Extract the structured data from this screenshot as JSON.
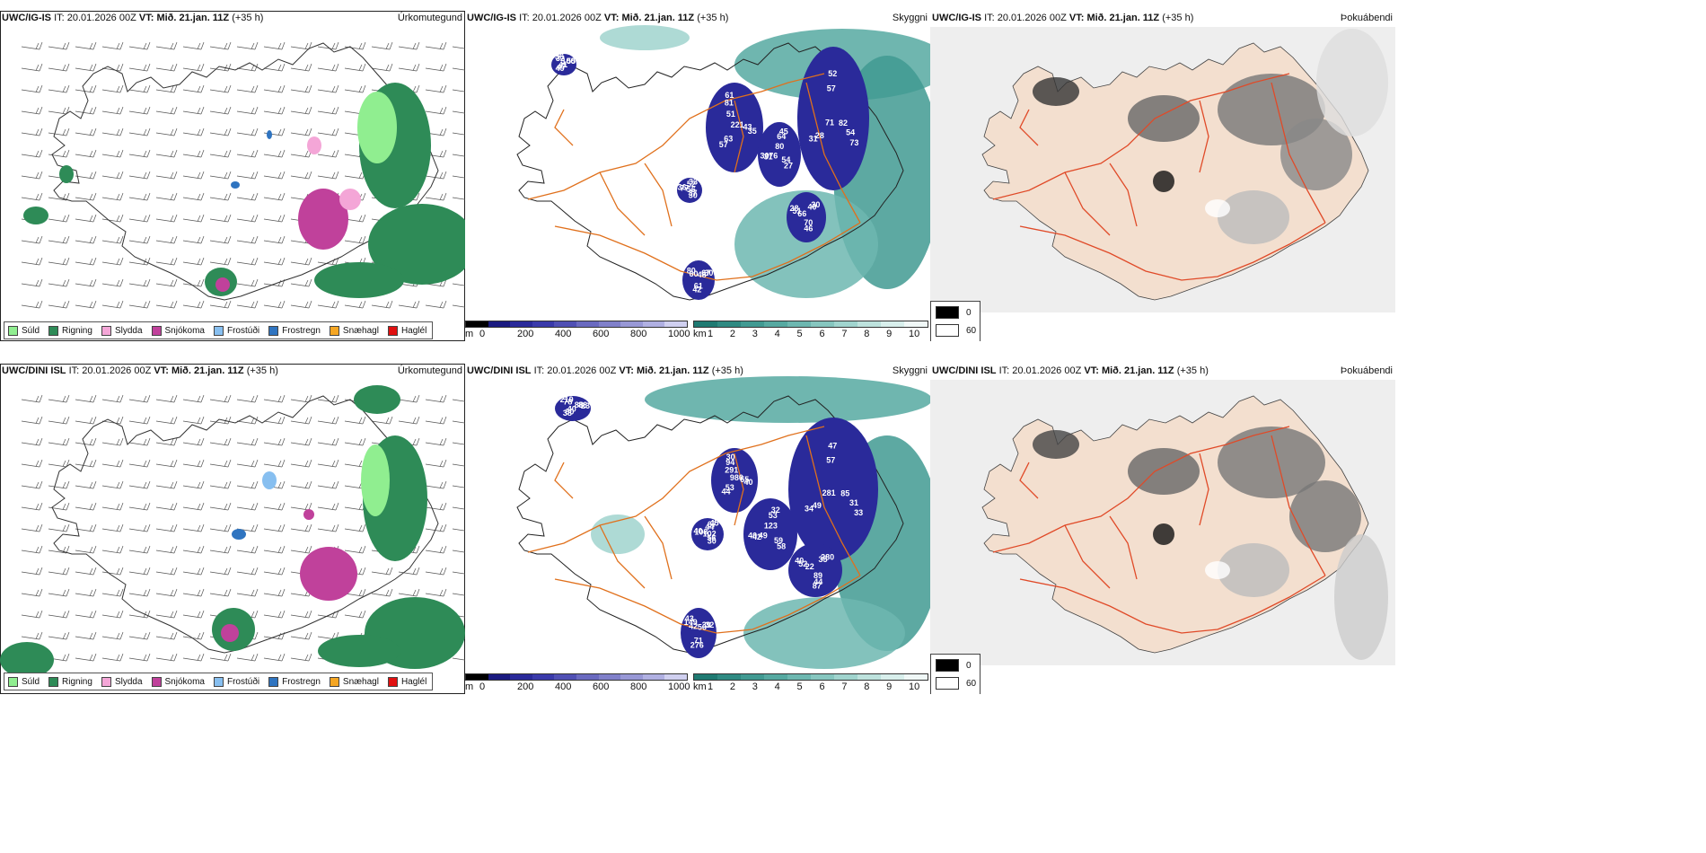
{
  "rows": [
    {
      "model": "UWC/IG-IS",
      "it_label": "IT:",
      "it_value": "20.01.2026 00Z",
      "vt_label": "VT:",
      "vt_value": "Mið. 21.jan. 11Z",
      "lead": "(+35 h)",
      "vis_labels": [
        "221",
        "71",
        "80",
        "56",
        "66",
        "48",
        "41",
        "51",
        "82",
        "76",
        "52",
        "70",
        "60",
        "100",
        "63",
        "57",
        "54",
        "77",
        "40",
        "61",
        "32",
        "43",
        "28",
        "64",
        "37",
        "51",
        "67",
        "47",
        "81",
        "54",
        "31",
        "33",
        "46",
        "80",
        "55",
        "57",
        "52",
        "27",
        "36",
        "30",
        "42",
        "36",
        "35",
        "31",
        "45",
        "30",
        "28",
        "30",
        "49",
        "61",
        "73",
        "30"
      ]
    },
    {
      "model": "UWC/DINI ISL",
      "it_label": "IT:",
      "it_value": "20.01.2026 00Z",
      "vt_label": "VT:",
      "vt_value": "Mið. 21.jan. 11Z",
      "lead": "(+35 h)",
      "vis_labels": [
        "980",
        "281",
        "123",
        "102",
        "22",
        "56",
        "40",
        "291",
        "85",
        "49",
        "44",
        "89",
        "42",
        "88",
        "53",
        "57",
        "59",
        "108",
        "35",
        "71",
        "78",
        "55",
        "49",
        "53",
        "56",
        "52",
        "39",
        "60",
        "94",
        "31",
        "42",
        "67",
        "44",
        "149",
        "86",
        "44",
        "47",
        "58",
        "40",
        "280",
        "276",
        "210",
        "40",
        "34",
        "32",
        "30",
        "40",
        "32",
        "38",
        "30",
        "33",
        "40",
        "45",
        "87",
        "43",
        "23"
      ]
    }
  ],
  "panels": {
    "precip_type": "Úrkomutegund",
    "visibility": "Skyggni",
    "cloud": "Þokuábendi"
  },
  "precip_legend": [
    {
      "label": "Súld",
      "color": "#90ee90",
      "icon": "drizzle-swatch"
    },
    {
      "label": "Rigning",
      "color": "#2e8b57",
      "icon": "rain-swatch"
    },
    {
      "label": "Slydda",
      "color": "#f4a6d7",
      "icon": "sleet-swatch"
    },
    {
      "label": "Snjókoma",
      "color": "#c0419b",
      "icon": "snow-swatch"
    },
    {
      "label": "Frostúði",
      "color": "#87bff0",
      "icon": "freezing-drizzle-swatch"
    },
    {
      "label": "Frostregn",
      "color": "#2f74c0",
      "icon": "freezing-rain-swatch"
    },
    {
      "label": "Snæhagl",
      "color": "#f5a623",
      "icon": "graupel-swatch"
    },
    {
      "label": "Haglél",
      "color": "#e01010",
      "icon": "hail-swatch"
    }
  ],
  "ceiling_bar": {
    "unit": "m",
    "ticks": [
      "0",
      "200",
      "400",
      "600",
      "800",
      "1000"
    ],
    "colors": [
      "#000000",
      "#1a1a80",
      "#2a2a9a",
      "#3a3aaa",
      "#5050b4",
      "#6a6ac0",
      "#8080ca",
      "#9898d6",
      "#b0b0e2",
      "#d0d0f0"
    ]
  },
  "visibility_bar": {
    "unit": "km",
    "ticks": [
      "1",
      "2",
      "3",
      "4",
      "5",
      "6",
      "7",
      "8",
      "9",
      "10"
    ],
    "colors": [
      "#1f7a72",
      "#2f8a82",
      "#419a92",
      "#56a9a1",
      "#6db7b0",
      "#86c6bf",
      "#a0d4ce",
      "#bde2dd",
      "#d8efec",
      "#f0f8f7"
    ]
  },
  "cloud_key": [
    {
      "label": "0",
      "color": "#000000"
    },
    {
      "label": "60",
      "color": "#ffffff"
    }
  ]
}
